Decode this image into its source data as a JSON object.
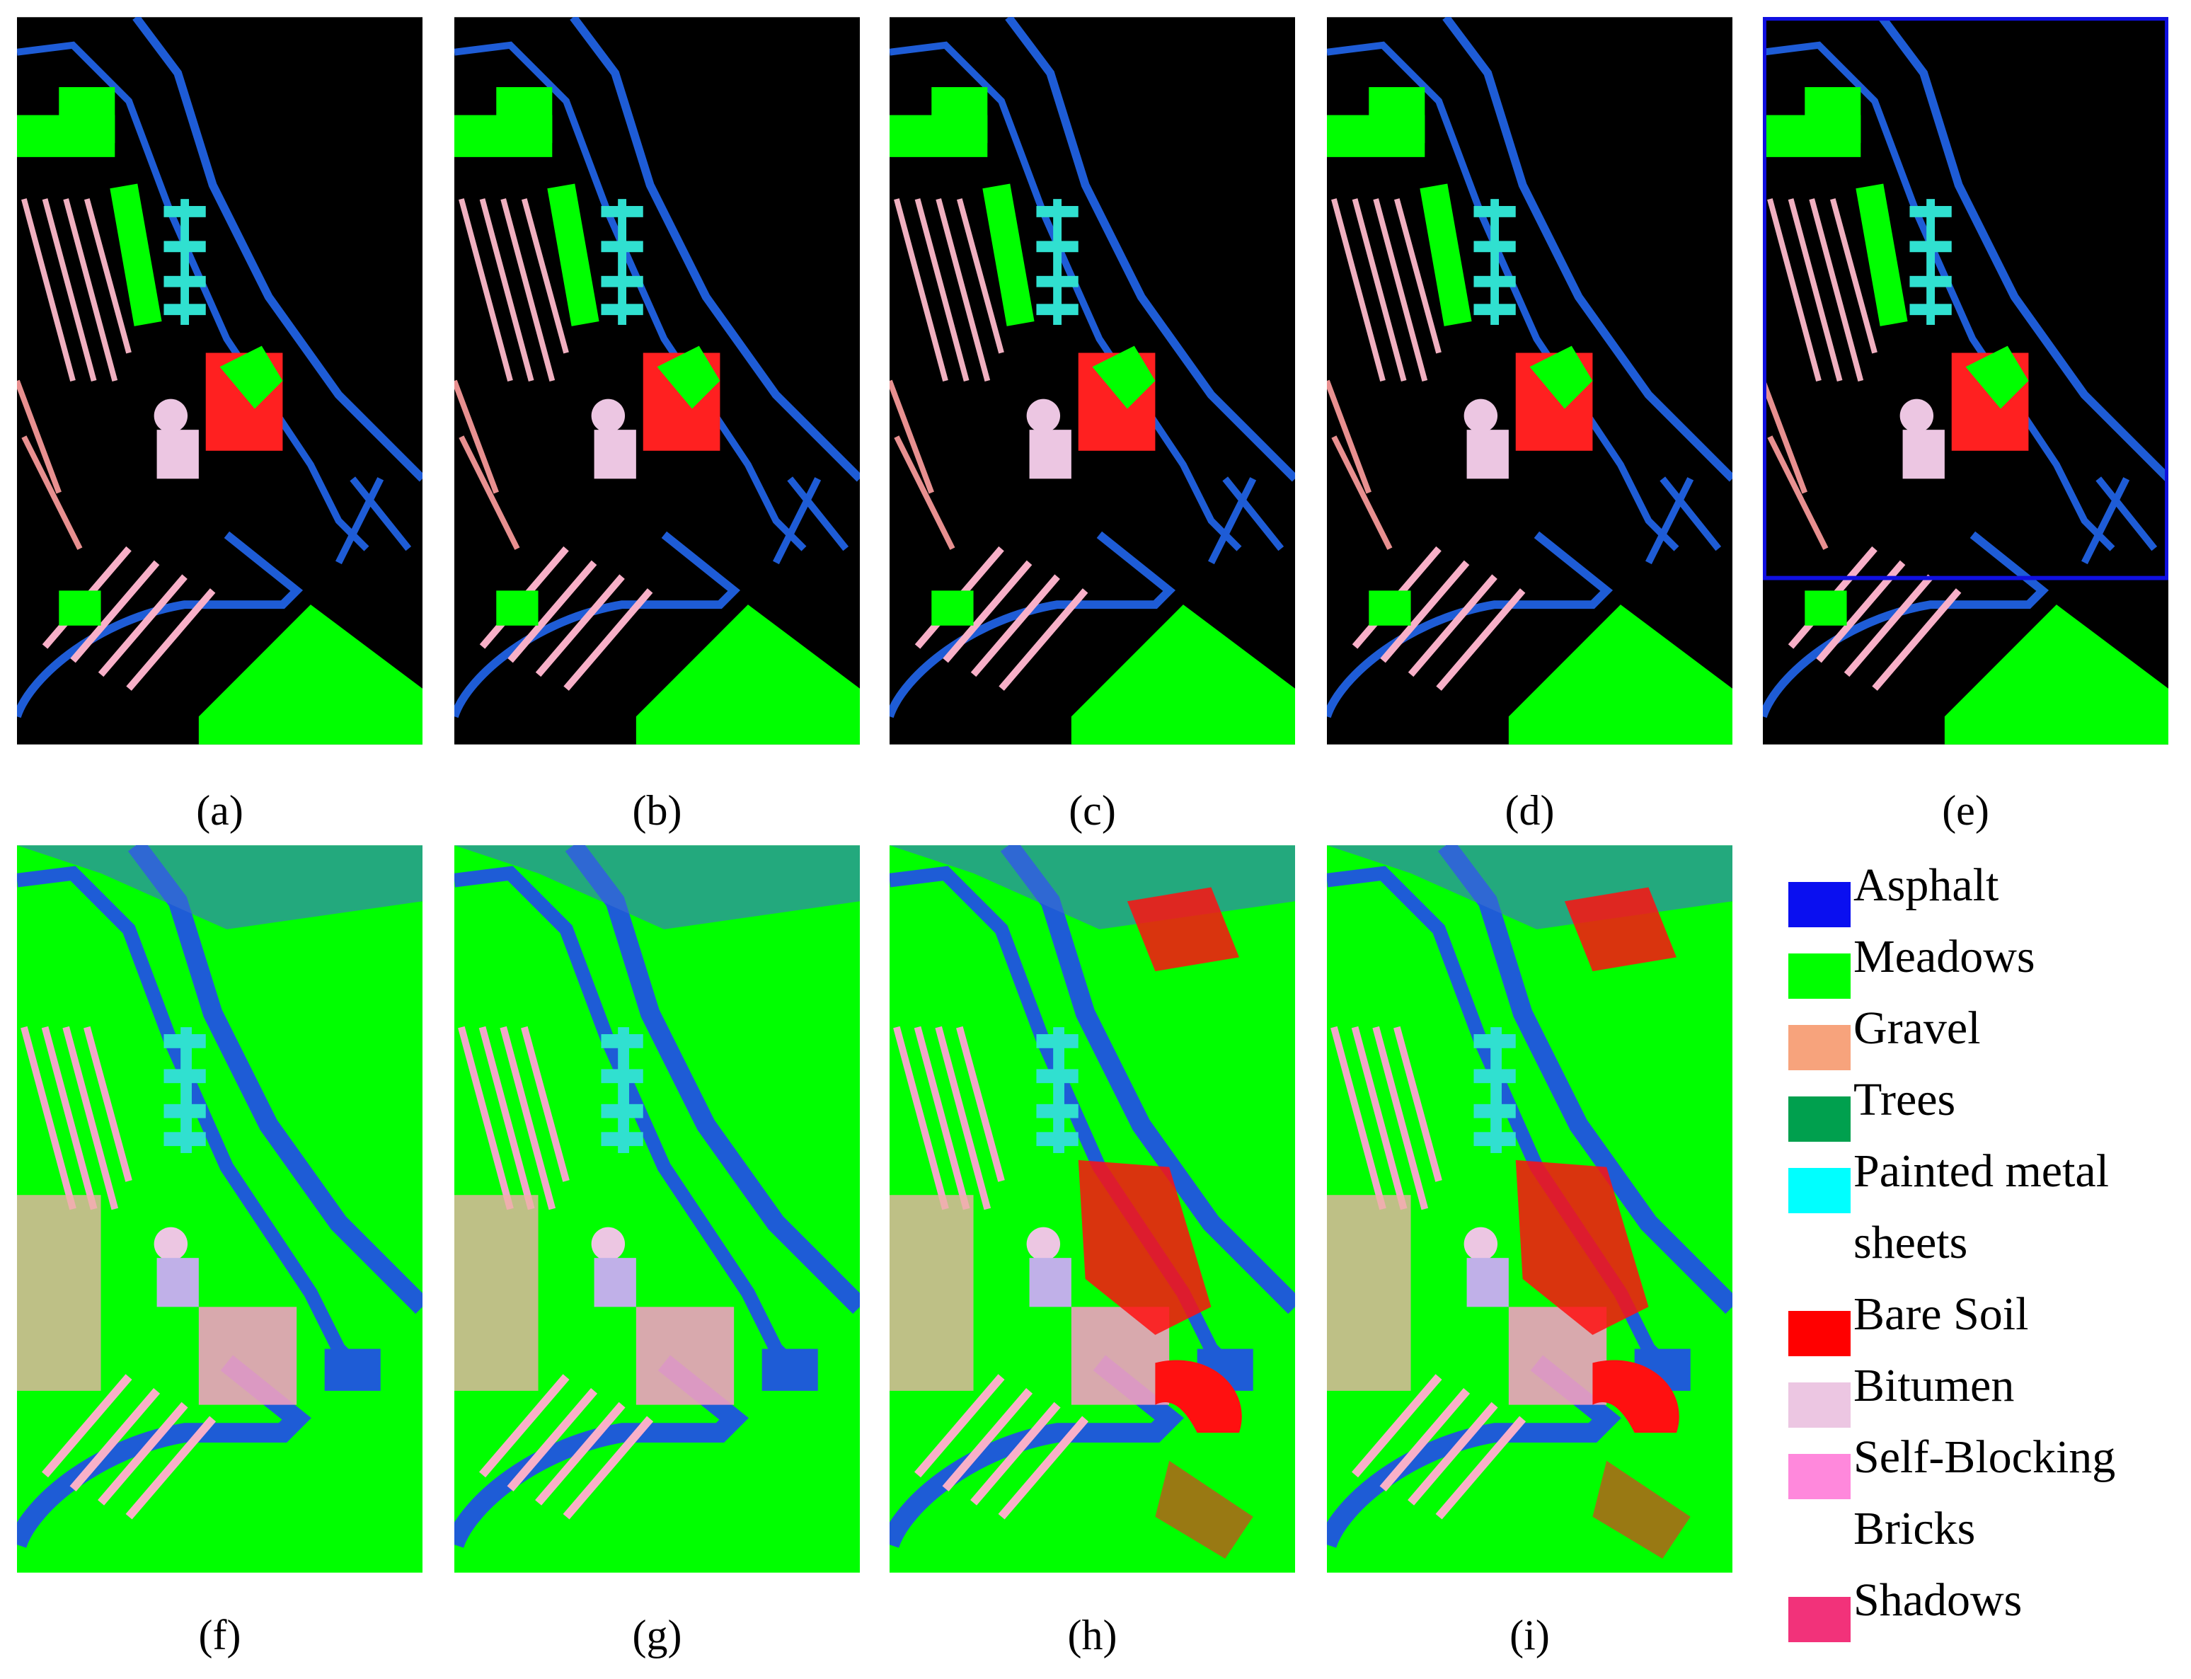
{
  "panels": [
    {
      "label": "(a)"
    },
    {
      "label": "(b)"
    },
    {
      "label": "(c)"
    },
    {
      "label": "(d)"
    },
    {
      "label": "(e)"
    },
    {
      "label": "(f)"
    },
    {
      "label": "(g)"
    },
    {
      "label": "(h)"
    },
    {
      "label": "(i)"
    }
  ],
  "legend": [
    {
      "name": "Asphalt",
      "color": "#0a0ff0"
    },
    {
      "name": "Meadows",
      "color": "#00ff00"
    },
    {
      "name": "Gravel",
      "color": "#f7a37c"
    },
    {
      "name": "Trees",
      "color": "#00a04e"
    },
    {
      "name": "Painted metal sheets",
      "color": "#00ffff"
    },
    {
      "name": "Bare Soil",
      "color": "#ff0000"
    },
    {
      "name": "Bitumen",
      "color": "#ecc6e2"
    },
    {
      "name": "Self-Blocking Bricks",
      "color": "#ff88dc"
    },
    {
      "name": "Shadows",
      "color": "#f2327a"
    }
  ]
}
